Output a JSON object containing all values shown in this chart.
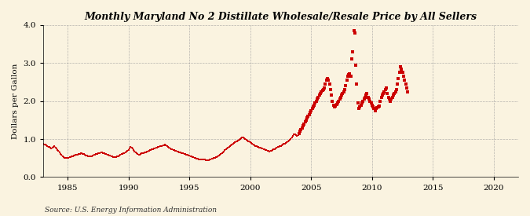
{
  "title": "Monthly Maryland No 2 Distillate Wholesale/Resale Price by All Sellers",
  "ylabel": "Dollars per Gallon",
  "source": "Source: U.S. Energy Information Administration",
  "background_color": "#FAF3E0",
  "line_color": "#CC0000",
  "xlim": [
    1983,
    2022
  ],
  "ylim": [
    0.0,
    4.0
  ],
  "xticks": [
    1985,
    1990,
    1995,
    2000,
    2005,
    2010,
    2015,
    2020
  ],
  "yticks": [
    0.0,
    1.0,
    2.0,
    3.0,
    4.0
  ],
  "start_year": 1983,
  "start_month": 1,
  "prices": [
    0.87,
    0.85,
    0.85,
    0.83,
    0.81,
    0.79,
    0.79,
    0.77,
    0.76,
    0.77,
    0.79,
    0.81,
    0.78,
    0.75,
    0.72,
    0.69,
    0.66,
    0.61,
    0.58,
    0.55,
    0.53,
    0.51,
    0.5,
    0.5,
    0.51,
    0.51,
    0.52,
    0.53,
    0.54,
    0.55,
    0.56,
    0.57,
    0.58,
    0.59,
    0.59,
    0.6,
    0.61,
    0.62,
    0.62,
    0.61,
    0.6,
    0.59,
    0.57,
    0.56,
    0.55,
    0.55,
    0.54,
    0.54,
    0.55,
    0.57,
    0.58,
    0.59,
    0.6,
    0.61,
    0.62,
    0.63,
    0.64,
    0.65,
    0.65,
    0.64,
    0.62,
    0.61,
    0.6,
    0.59,
    0.58,
    0.57,
    0.56,
    0.55,
    0.54,
    0.53,
    0.52,
    0.52,
    0.53,
    0.54,
    0.55,
    0.57,
    0.59,
    0.6,
    0.61,
    0.62,
    0.63,
    0.65,
    0.67,
    0.69,
    0.72,
    0.75,
    0.8,
    0.78,
    0.75,
    0.72,
    0.68,
    0.65,
    0.63,
    0.61,
    0.59,
    0.58,
    0.6,
    0.62,
    0.63,
    0.64,
    0.65,
    0.66,
    0.67,
    0.68,
    0.7,
    0.71,
    0.72,
    0.73,
    0.74,
    0.75,
    0.76,
    0.77,
    0.78,
    0.79,
    0.8,
    0.81,
    0.82,
    0.82,
    0.83,
    0.84,
    0.85,
    0.84,
    0.82,
    0.8,
    0.78,
    0.76,
    0.74,
    0.73,
    0.72,
    0.71,
    0.7,
    0.69,
    0.68,
    0.67,
    0.66,
    0.65,
    0.64,
    0.63,
    0.62,
    0.61,
    0.6,
    0.59,
    0.58,
    0.57,
    0.56,
    0.55,
    0.54,
    0.53,
    0.52,
    0.51,
    0.5,
    0.49,
    0.48,
    0.47,
    0.47,
    0.47,
    0.47,
    0.47,
    0.47,
    0.46,
    0.45,
    0.44,
    0.44,
    0.45,
    0.46,
    0.47,
    0.48,
    0.49,
    0.5,
    0.51,
    0.52,
    0.53,
    0.54,
    0.56,
    0.58,
    0.61,
    0.63,
    0.65,
    0.68,
    0.71,
    0.73,
    0.75,
    0.77,
    0.79,
    0.81,
    0.83,
    0.85,
    0.87,
    0.89,
    0.91,
    0.93,
    0.95,
    0.97,
    0.99,
    1.01,
    1.03,
    1.05,
    1.04,
    1.03,
    1.01,
    0.99,
    0.97,
    0.95,
    0.93,
    0.91,
    0.89,
    0.87,
    0.85,
    0.83,
    0.82,
    0.81,
    0.8,
    0.79,
    0.78,
    0.77,
    0.76,
    0.75,
    0.74,
    0.73,
    0.72,
    0.71,
    0.7,
    0.69,
    0.68,
    0.69,
    0.7,
    0.71,
    0.73,
    0.74,
    0.76,
    0.77,
    0.79,
    0.8,
    0.81,
    0.82,
    0.83,
    0.85,
    0.87,
    0.88,
    0.89,
    0.91,
    0.93,
    0.96,
    0.98,
    1.01,
    1.05,
    1.08,
    1.12,
    1.13,
    1.1,
    1.08,
    1.1,
    1.15,
    1.2,
    1.25,
    1.3,
    1.35,
    1.4,
    1.45,
    1.5,
    1.55,
    1.6,
    1.65,
    1.7,
    1.75,
    1.8,
    1.85,
    1.9,
    1.95,
    2.0,
    2.05,
    2.1,
    2.15,
    2.2,
    2.25,
    2.28,
    2.3,
    2.35,
    2.45,
    2.55,
    2.6,
    2.55,
    2.45,
    2.3,
    2.15,
    2.0,
    1.9,
    1.85,
    1.88,
    1.92,
    1.96,
    2.0,
    2.05,
    2.1,
    2.15,
    2.2,
    2.25,
    2.3,
    2.4,
    2.55,
    2.65,
    2.7,
    2.72,
    2.65,
    3.1,
    3.3,
    3.85,
    3.8,
    2.95,
    2.45,
    1.95,
    1.8,
    1.85,
    1.9,
    1.95,
    2.0,
    2.05,
    2.1,
    2.15,
    2.2,
    2.1,
    2.05,
    2.0,
    1.95,
    1.9,
    1.85,
    1.8,
    1.75,
    1.8,
    1.82,
    1.85,
    1.88,
    2.0,
    2.1,
    2.15,
    2.2,
    2.25,
    2.3,
    2.35,
    2.2,
    2.1,
    2.05,
    2.0,
    2.05,
    2.1,
    2.15,
    2.2,
    2.25,
    2.3,
    2.45,
    2.6,
    2.75,
    2.9,
    2.85,
    2.75,
    2.65,
    2.55,
    2.45,
    2.35,
    2.25
  ]
}
